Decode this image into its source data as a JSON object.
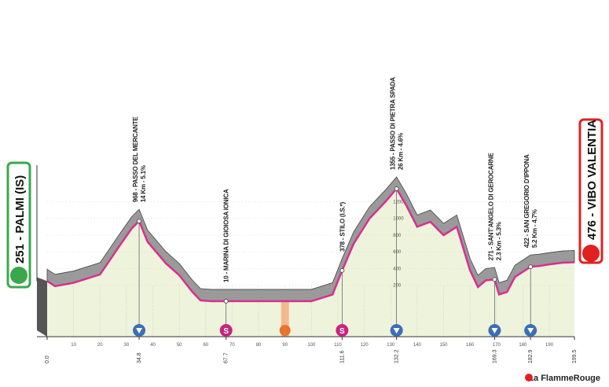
{
  "chart_data": {
    "type": "area",
    "x": [
      0,
      3,
      10,
      20,
      28,
      32,
      34.8,
      38,
      45,
      50,
      55,
      58,
      62,
      67.7,
      80,
      100,
      108,
      111.6,
      116,
      122,
      128,
      132.2,
      136,
      140,
      145,
      150,
      155,
      160,
      163,
      166,
      169.3,
      171,
      174,
      177,
      182.9,
      186,
      190,
      195,
      199.5
    ],
    "values": [
      251,
      190,
      230,
      330,
      700,
      880,
      968,
      720,
      460,
      320,
      120,
      20,
      10,
      10,
      10,
      10,
      90,
      378,
      700,
      1000,
      1200,
      1355,
      1150,
      900,
      960,
      800,
      900,
      380,
      180,
      260,
      271,
      90,
      120,
      300,
      422,
      430,
      450,
      470,
      476
    ],
    "color": "#d6308f",
    "xlim": [
      0,
      199.5
    ],
    "xticks": [
      10,
      20,
      30,
      40,
      50,
      60,
      70,
      80,
      90,
      100,
      110,
      120,
      130,
      140,
      150,
      160,
      170,
      180,
      190
    ],
    "ylim": [
      0,
      1400
    ],
    "yticks": [
      200,
      400,
      600,
      800,
      1000,
      1200
    ],
    "km_markers": {
      "values": [
        0,
        34.8,
        67.7,
        111.6,
        132.2,
        169.3,
        182.9,
        199.5
      ],
      "labels": [
        "0.0",
        "34.8",
        "67.7",
        "111.6",
        "132.2",
        "169.3",
        "182.9",
        "199.5"
      ]
    },
    "annotations": [
      {
        "x": 34.8,
        "elevation": 968,
        "lines": [
          "968 - PASSO DEL MERCANTE",
          "14 Km - 5.1%"
        ],
        "icon": "gpm"
      },
      {
        "x": 67.7,
        "elevation": 10,
        "lines": [
          "10 - MARINA DI GIOIOSA IONICA"
        ],
        "icon": "sprint",
        "icon_label": "S"
      },
      {
        "x": 111.6,
        "elevation": 378,
        "lines": [
          "378 - STILO (I.S.*)"
        ],
        "icon": "sprint",
        "icon_label": "S"
      },
      {
        "x": 132.2,
        "elevation": 1355,
        "lines": [
          "1355 - PASSO DI PIETRA SPADA",
          "26 Km - 4.6%"
        ],
        "icon": "gpm"
      },
      {
        "x": 169.3,
        "elevation": 271,
        "lines": [
          "271 - SANT'ANGELO DI GEROCARNE",
          "2.3 Km - 5.3%"
        ],
        "icon": "gpm"
      },
      {
        "x": 182.9,
        "elevation": 422,
        "lines": [
          "422 - SAN GREGORIO D'IPPONA",
          "5.2 Km - 4.7%"
        ],
        "icon": "gpm"
      }
    ],
    "intermediate": {
      "x": 90
    },
    "start": {
      "elevation": 251,
      "label": "251 - PALMI (IS)"
    },
    "finish": {
      "elevation": 476,
      "label": "476 - VIBO VALENTIA"
    },
    "footer": "La FlammeRouge"
  }
}
